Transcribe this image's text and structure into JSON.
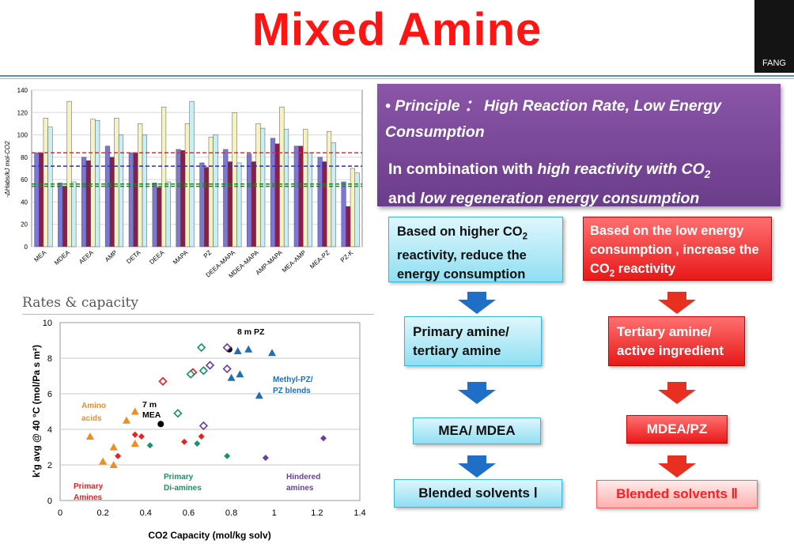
{
  "slide": {
    "title": "Mixed Amine",
    "logo_text": "FANG"
  },
  "principle": {
    "heading_prefix": "• ",
    "heading": "Principle ： High Reaction Rate, Low Energy Consumption",
    "body_1": "In combination with ",
    "body_2": "high reactivity with CO",
    "body_2_sub": "2",
    "body_3": "and ",
    "body_4": "low regeneration energy consumption"
  },
  "flow_left": {
    "box1_a": "Based on higher CO",
    "box1_sub": "2",
    "box1_b": "reactivity, reduce the energy consumption",
    "box2": "Primary amine/ tertiary amine",
    "box3": "MEA/ MDEA",
    "box4": "Blended solvents Ⅰ"
  },
  "flow_right": {
    "box1_a": "Based on the low energy consumption , increase the CO",
    "box1_sub": "2",
    "box1_b": " reactivity",
    "box2": "Tertiary amine/ active ingredient",
    "box3": "MDEA/PZ",
    "box4": "Blended solvents Ⅱ"
  },
  "rates_title": "Rates & capacity",
  "chart_data": [
    {
      "type": "bar",
      "ylabel": "-ΔHabs/kJ mol-CO2",
      "ylim": [
        0,
        140
      ],
      "yticks": [
        0,
        20,
        40,
        60,
        80,
        100,
        120,
        140
      ],
      "categories": [
        "MEA",
        "MDEA",
        "AEEA",
        "AMP",
        "DETA",
        "DEEA",
        "MAPA",
        "PZ",
        "DEEA-MAPA",
        "MDEA-MAPA",
        "AMP-MAPA",
        "MEA-AMP",
        "MEA-PZ",
        "PZ-K"
      ],
      "series": [
        {
          "color": "#7b76d8",
          "values": [
            84,
            57,
            80,
            90,
            84,
            57,
            87,
            75,
            87,
            83,
            97,
            90,
            80,
            58
          ]
        },
        {
          "color": "#8b1d4a",
          "values": [
            84,
            54,
            77,
            80,
            84,
            53,
            86,
            71,
            76,
            76,
            92,
            90,
            76,
            36
          ]
        },
        {
          "color": "#f7f2c2",
          "values": [
            115,
            130,
            114,
            115,
            110,
            125,
            110,
            98,
            120,
            110,
            125,
            105,
            103,
            70
          ]
        },
        {
          "color": "#c8f0f4",
          "values": [
            107,
            58,
            113,
            100,
            100,
            58,
            130,
            100,
            75,
            106,
            105,
            84,
            93,
            66
          ]
        }
      ],
      "reference_lines": [
        {
          "value": 84,
          "color": "#d43030"
        },
        {
          "value": 72,
          "color": "#3030a0"
        },
        {
          "value": 56,
          "color": "#208020"
        },
        {
          "value": 54,
          "color": "#208020"
        }
      ]
    },
    {
      "type": "scatter",
      "xlabel": "CO2 Capacity (mol/kg solv)",
      "ylabel": "k'g avg @ 40 °C (mol/Pa s m²)",
      "xlim": [
        0,
        1.4
      ],
      "ylim": [
        0,
        10
      ],
      "xticks": [
        0,
        0.2,
        0.4,
        0.6,
        0.8,
        1,
        1.2,
        1.4
      ],
      "yticks": [
        0,
        2,
        4,
        6,
        8,
        10
      ],
      "series": [
        {
          "color": "#f28c1c",
          "marker": "triangle",
          "points": [
            [
              0.14,
              3.6
            ],
            [
              0.2,
              2.2
            ],
            [
              0.25,
              3.0
            ],
            [
              0.25,
              2.0
            ],
            [
              0.31,
              4.5
            ],
            [
              0.35,
              5.0
            ],
            [
              0.35,
              3.2
            ]
          ]
        },
        {
          "color": "#e82020",
          "marker": "diamond-filled",
          "points": [
            [
              0.27,
              2.5
            ],
            [
              0.35,
              3.7
            ],
            [
              0.38,
              3.6
            ],
            [
              0.58,
              3.3
            ],
            [
              0.66,
              3.6
            ]
          ]
        },
        {
          "color": "#e82020",
          "marker": "diamond-open",
          "points": [
            [
              0.48,
              6.7
            ],
            [
              0.62,
              7.2
            ]
          ]
        },
        {
          "color": "#000000",
          "marker": "circle",
          "points": [
            [
              0.47,
              4.3
            ],
            [
              0.79,
              8.5
            ]
          ]
        },
        {
          "color": "#16936a",
          "marker": "diamond-open",
          "points": [
            [
              0.55,
              4.9
            ],
            [
              0.61,
              7.1
            ],
            [
              0.66,
              8.6
            ],
            [
              0.67,
              7.3
            ]
          ]
        },
        {
          "color": "#16936a",
          "marker": "diamond-filled",
          "points": [
            [
              0.42,
              3.1
            ],
            [
              0.64,
              3.2
            ],
            [
              0.78,
              2.5
            ]
          ]
        },
        {
          "color": "#1f6fb4",
          "marker": "triangle",
          "points": [
            [
              0.8,
              6.9
            ],
            [
              0.83,
              8.4
            ],
            [
              0.84,
              7.1
            ],
            [
              0.88,
              8.5
            ],
            [
              0.93,
              5.9
            ],
            [
              0.99,
              8.3
            ]
          ]
        },
        {
          "color": "#6a3ea0",
          "marker": "diamond-open",
          "points": [
            [
              0.67,
              4.2
            ],
            [
              0.7,
              7.6
            ],
            [
              0.78,
              7.4
            ],
            [
              0.78,
              8.6
            ]
          ]
        },
        {
          "color": "#6a3ea0",
          "marker": "diamond-filled",
          "points": [
            [
              0.96,
              2.4
            ],
            [
              1.23,
              3.5
            ]
          ]
        }
      ],
      "annotations": [
        {
          "text": "8 m PZ",
          "color": "#000000"
        },
        {
          "text": "7 m",
          "color": "#000000"
        },
        {
          "text": "MEA",
          "color": "#000000"
        },
        {
          "text": "Amino",
          "color": "#f28c1c"
        },
        {
          "text": "acids",
          "color": "#f28c1c"
        },
        {
          "text": "Methyl-PZ/",
          "color": "#1f6fb4"
        },
        {
          "text": "PZ blends",
          "color": "#1f6fb4"
        },
        {
          "text": "Primary",
          "color": "#e82020"
        },
        {
          "text": "Amines",
          "color": "#e82020"
        },
        {
          "text": "Primary",
          "color": "#16936a"
        },
        {
          "text": "Di-amines",
          "color": "#16936a"
        },
        {
          "text": "Hindered",
          "color": "#6a3ea0"
        },
        {
          "text": "amines",
          "color": "#6a3ea0"
        }
      ]
    }
  ]
}
